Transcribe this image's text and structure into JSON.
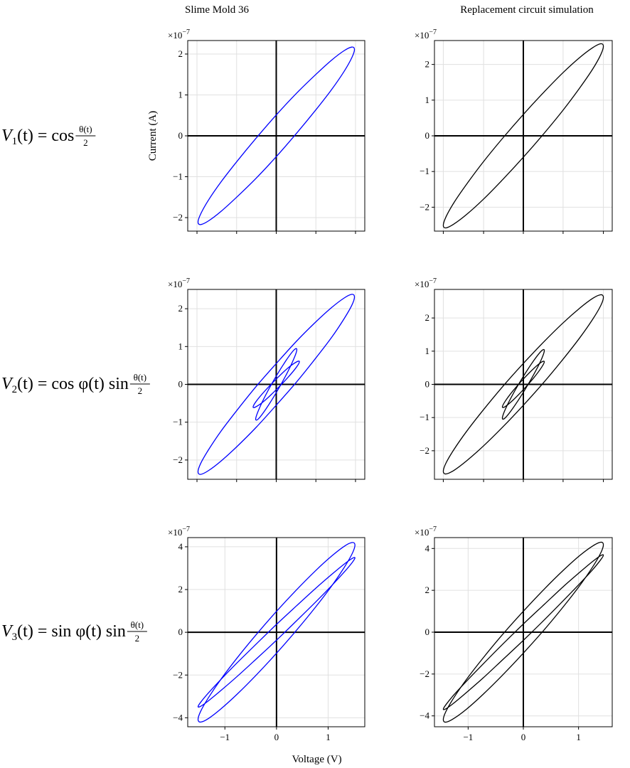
{
  "row_labels": [
    {
      "lhs": "V",
      "sub": "1",
      "mid": "(t) = cos",
      "num": "θ(t)",
      "den": "2"
    },
    {
      "lhs": "V",
      "sub": "2",
      "mid": "(t) = cos φ(t) sin",
      "num": "θ(t)",
      "den": "2"
    },
    {
      "lhs": "V",
      "sub": "3",
      "mid": "(t) = sin φ(t) sin",
      "num": "θ(t)",
      "den": "2"
    }
  ],
  "chart_data": [
    {
      "type": "line",
      "title": "Slime Mold 36",
      "ylabel": "Current (A)",
      "color": "#0000ff",
      "offset_label": {
        "base": "×10",
        "exp": "−7"
      },
      "xlim": [
        -1.72,
        1.72
      ],
      "xticks": [
        -1.54,
        -0.77,
        0,
        0.77,
        1.54
      ],
      "xtick_labels": false,
      "ylim": [
        -2.33,
        2.33
      ],
      "yticks": [
        {
          "value": -2,
          "label": "−2"
        },
        {
          "value": -1,
          "label": "−1"
        },
        0,
        1,
        2
      ],
      "grid": true,
      "curves": [
        {
          "x": [
            1.52,
            1.468,
            1.316,
            1.075,
            0.76,
            0.393,
            0,
            -0.393,
            -0.76,
            -1.075,
            -1.316,
            -1.468,
            -1.52,
            -1.468,
            -1.316,
            -1.075,
            -0.76,
            -0.393,
            0,
            0.393,
            0.76,
            1.075,
            1.316,
            1.468
          ],
          "y": [
            2.11,
            2.17,
            2.08,
            1.85,
            1.49,
            1.04,
            0.51,
            -0.06,
            -0.62,
            -1.13,
            -1.57,
            -1.91,
            -2.11,
            -2.17,
            -2.08,
            -1.85,
            -1.49,
            -1.04,
            -0.51,
            0.06,
            0.62,
            1.13,
            1.57,
            1.91
          ]
        }
      ]
    },
    {
      "type": "line",
      "title": "Replacement circuit simulation",
      "color": "#000000",
      "offset_label": {
        "base": "×10",
        "exp": "−7"
      },
      "xlim": [
        -1.61,
        1.61
      ],
      "xticks": [
        -1.45,
        -0.72,
        0,
        0.72,
        1.45
      ],
      "xtick_labels": false,
      "ylim": [
        -2.67,
        2.67
      ],
      "yticks": [
        {
          "value": -2,
          "label": "−2"
        },
        {
          "value": -1,
          "label": "−1"
        },
        0,
        1,
        2
      ],
      "grid": true,
      "curves": [
        {
          "x": [
            1.45,
            1.401,
            1.256,
            1.025,
            0.725,
            0.376,
            0,
            -0.376,
            -0.725,
            -1.025,
            -1.256,
            -1.401,
            -1.45,
            -1.401,
            -1.256,
            -1.025,
            -0.725,
            -0.376,
            0,
            0.376,
            0.725,
            1.025,
            1.256,
            1.401
          ],
          "y": [
            2.51,
            2.58,
            2.47,
            2.2,
            1.78,
            1.23,
            0.6,
            -0.07,
            -0.73,
            -1.35,
            -1.87,
            -2.27,
            -2.51,
            -2.58,
            -2.47,
            -2.2,
            -1.78,
            -1.23,
            -0.6,
            0.07,
            0.73,
            1.35,
            1.87,
            2.27
          ]
        }
      ]
    },
    {
      "type": "line",
      "color": "#0000ff",
      "offset_label": {
        "base": "×10",
        "exp": "−7"
      },
      "xlim": [
        -1.72,
        1.72
      ],
      "xticks": [
        -1.54,
        -0.77,
        0,
        0.77,
        1.54
      ],
      "xtick_labels": false,
      "ylim": [
        -2.51,
        2.51
      ],
      "yticks": [
        {
          "value": -2,
          "label": "−2"
        },
        {
          "value": -1,
          "label": "−1"
        },
        0,
        1,
        2
      ],
      "grid": true,
      "curves": [
        {
          "x": [
            1.52,
            1.468,
            1.316,
            1.075,
            0.76,
            0.393,
            0,
            -0.393,
            -0.76,
            -1.075,
            -1.316,
            -1.468,
            -1.52,
            -1.468,
            -1.316,
            -1.075,
            -0.76,
            -0.393,
            0,
            0.393,
            0.76,
            1.075,
            1.316,
            1.468
          ],
          "y": [
            2.31,
            2.38,
            2.28,
            2.03,
            1.64,
            1.14,
            0.55,
            -0.06,
            -0.68,
            -1.24,
            -1.73,
            -2.09,
            -2.31,
            -2.38,
            -2.28,
            -2.03,
            -1.64,
            -1.14,
            -0.55,
            0.06,
            0.68,
            1.24,
            1.73,
            2.09
          ]
        },
        {
          "x": [
            0.4,
            0.346,
            0.2,
            0,
            -0.2,
            -0.346,
            -0.4,
            -0.346,
            -0.2,
            0,
            0.2,
            0.346
          ],
          "y": [
            0.92,
            0.91,
            0.65,
            0.22,
            -0.27,
            -0.69,
            -0.92,
            -0.91,
            -0.65,
            -0.22,
            0.27,
            0.69
          ]
        },
        {
          "x": [
            0.45,
            0.39,
            0.225,
            0,
            -0.225,
            -0.39,
            -0.45,
            -0.39,
            -0.225,
            0,
            0.225,
            0.39
          ],
          "y": [
            0.6,
            0.59,
            0.43,
            0.14,
            -0.18,
            -0.45,
            -0.6,
            -0.59,
            -0.43,
            -0.14,
            0.18,
            0.45
          ]
        }
      ]
    },
    {
      "type": "line",
      "color": "#000000",
      "offset_label": {
        "base": "×10",
        "exp": "−7"
      },
      "xlim": [
        -1.61,
        1.61
      ],
      "xticks": [
        -1.45,
        -0.72,
        0,
        0.72,
        1.45
      ],
      "xtick_labels": false,
      "ylim": [
        -2.86,
        2.86
      ],
      "yticks": [
        {
          "value": -2,
          "label": "−2"
        },
        {
          "value": -1,
          "label": "−1"
        },
        0,
        1,
        2
      ],
      "grid": true,
      "curves": [
        {
          "x": [
            1.45,
            1.401,
            1.256,
            1.025,
            0.725,
            0.376,
            0,
            -0.376,
            -0.725,
            -1.025,
            -1.256,
            -1.401,
            -1.45,
            -1.401,
            -1.256,
            -1.025,
            -0.725,
            -0.376,
            0,
            0.376,
            0.725,
            1.025,
            1.256,
            1.401
          ],
          "y": [
            2.62,
            2.7,
            2.59,
            2.3,
            1.86,
            1.29,
            0.63,
            -0.07,
            -0.77,
            -1.41,
            -1.96,
            -2.37,
            -2.62,
            -2.7,
            -2.59,
            -2.3,
            -1.86,
            -1.29,
            -0.63,
            0.07,
            0.77,
            1.41,
            1.96,
            2.37
          ]
        },
        {
          "x": [
            0.38,
            0.329,
            0.19,
            0,
            -0.19,
            -0.329,
            -0.38,
            -0.329,
            -0.19,
            0,
            0.19,
            0.329
          ],
          "y": [
            1.02,
            1.01,
            0.72,
            0.24,
            -0.3,
            -0.76,
            -1.02,
            -1.01,
            -0.72,
            -0.24,
            0.3,
            0.76
          ]
        },
        {
          "x": [
            0.38,
            0.329,
            0.19,
            0,
            -0.19,
            -0.329,
            -0.38,
            -0.329,
            -0.19,
            0,
            0.19,
            0.329
          ],
          "y": [
            0.68,
            0.67,
            0.48,
            0.16,
            -0.2,
            -0.51,
            -0.68,
            -0.67,
            -0.48,
            -0.16,
            0.2,
            0.51
          ]
        }
      ]
    },
    {
      "type": "line",
      "xlabel": "Voltage (V)",
      "color": "#0000ff",
      "offset_label": {
        "base": "×10",
        "exp": "−7"
      },
      "xlim": [
        -1.72,
        1.71
      ],
      "xticks": [
        {
          "value": -1,
          "label": "−1"
        },
        0,
        1
      ],
      "xtick_labels": true,
      "ylim": [
        -4.42,
        4.43
      ],
      "yticks": [
        {
          "value": -4,
          "label": "−4"
        },
        {
          "value": -2,
          "label": "−2"
        },
        0,
        2,
        4
      ],
      "grid": true,
      "curves": [
        {
          "x": [
            1.52,
            1.468,
            1.316,
            1.075,
            0.76,
            0.393,
            0,
            -0.393,
            -0.76,
            -1.075,
            -1.316,
            -1.468,
            -1.52,
            -1.468,
            -1.316,
            -1.075,
            -0.76,
            -0.393,
            0,
            0.393,
            0.76,
            1.075,
            1.316,
            1.468
          ],
          "y": [
            4.08,
            4.2,
            4.03,
            3.58,
            2.89,
            2.0,
            0.98,
            -0.11,
            -1.19,
            -2.19,
            -3.05,
            -3.69,
            -4.08,
            -4.2,
            -4.03,
            -3.58,
            -2.89,
            -2.0,
            -0.98,
            0.11,
            1.19,
            2.19,
            3.05,
            3.69
          ]
        },
        {
          "x": [
            1.52,
            1.468,
            1.316,
            1.075,
            0.76,
            0.393,
            0,
            -0.393,
            -0.76,
            -1.075,
            -1.316,
            -1.468,
            -1.52,
            -1.468,
            -1.316,
            -1.075,
            -0.76,
            -0.393,
            0,
            0.393,
            0.76,
            1.075,
            1.316,
            1.468
          ],
          "y": [
            3.48,
            3.46,
            3.2,
            2.72,
            2.06,
            1.25,
            0.37,
            -0.55,
            -1.42,
            -2.2,
            -2.83,
            -3.27,
            -3.48,
            -3.46,
            -3.2,
            -2.72,
            -2.06,
            -1.25,
            -0.37,
            0.55,
            1.42,
            2.2,
            2.83,
            3.27
          ]
        }
      ]
    },
    {
      "type": "line",
      "color": "#000000",
      "offset_label": {
        "base": "×10",
        "exp": "−7"
      },
      "xlim": [
        -1.61,
        1.61
      ],
      "xticks": [
        {
          "value": -1,
          "label": "−1"
        },
        0,
        1
      ],
      "xtick_labels": true,
      "ylim": [
        -4.52,
        4.52
      ],
      "yticks": [
        {
          "value": -4,
          "label": "−4"
        },
        {
          "value": -2,
          "label": "−2"
        },
        0,
        2,
        4
      ],
      "grid": true,
      "curves": [
        {
          "x": [
            1.45,
            1.401,
            1.256,
            1.025,
            0.725,
            0.376,
            0,
            -0.376,
            -0.725,
            -1.025,
            -1.256,
            -1.401,
            -1.45,
            -1.401,
            -1.256,
            -1.025,
            -0.725,
            -0.376,
            0,
            0.376,
            0.725,
            1.025,
            1.256,
            1.401
          ],
          "y": [
            4.18,
            4.3,
            4.12,
            3.67,
            2.96,
            2.05,
            1.0,
            -0.11,
            -1.22,
            -2.24,
            -3.12,
            -3.78,
            -4.18,
            -4.3,
            -4.12,
            -3.67,
            -2.96,
            -2.05,
            -1.0,
            0.11,
            1.22,
            2.24,
            3.12,
            3.78
          ]
        },
        {
          "x": [
            1.45,
            1.401,
            1.256,
            1.025,
            0.725,
            0.376,
            0,
            -0.376,
            -0.725,
            -1.025,
            -1.256,
            -1.401,
            -1.45,
            -1.401,
            -1.256,
            -1.025,
            -0.725,
            -0.376,
            0,
            0.376,
            0.725,
            1.025,
            1.256,
            1.401
          ],
          "y": [
            3.68,
            3.66,
            3.38,
            2.87,
            2.18,
            1.32,
            0.39,
            -0.58,
            -1.51,
            -2.33,
            -2.99,
            -3.46,
            -3.68,
            -3.66,
            -3.38,
            -2.87,
            -2.18,
            -1.32,
            -0.39,
            0.58,
            1.51,
            2.33,
            2.99,
            3.46
          ]
        }
      ]
    }
  ]
}
